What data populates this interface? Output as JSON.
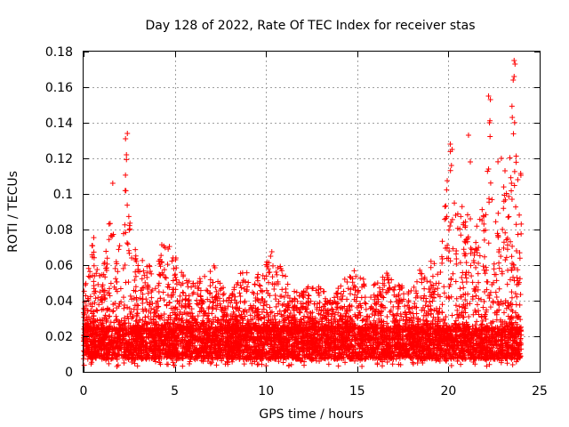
{
  "chart_data": {
    "type": "scatter",
    "title": "Day 128 of 2022, Rate Of TEC Index for receiver stas",
    "xlabel": "GPS time / hours",
    "ylabel": "ROTI / TECUs",
    "xlim": [
      0,
      25
    ],
    "ylim": [
      0,
      0.18
    ],
    "x_ticks": [
      0,
      5,
      10,
      15,
      20,
      25
    ],
    "x_tick_labels": [
      "0",
      "5",
      "10",
      "15",
      "20",
      "25"
    ],
    "y_ticks": [
      0,
      0.02,
      0.04,
      0.06,
      0.08,
      0.1,
      0.12,
      0.14,
      0.16,
      0.18
    ],
    "y_tick_labels": [
      "0",
      "0.02",
      "0.04",
      "0.06",
      "0.08",
      "0.1",
      "0.12",
      "0.14",
      "0.16",
      "0.18"
    ],
    "grid": true,
    "marker": "plus",
    "color": "#ff0000",
    "baseline_band": [
      0.007,
      0.024
    ],
    "envelope": [
      [
        0.0,
        0.045
      ],
      [
        0.3,
        0.06
      ],
      [
        0.5,
        0.083
      ],
      [
        0.8,
        0.055
      ],
      [
        1.0,
        0.06
      ],
      [
        1.3,
        0.075
      ],
      [
        1.6,
        0.106
      ],
      [
        1.9,
        0.07
      ],
      [
        2.2,
        0.095
      ],
      [
        2.4,
        0.133
      ],
      [
        2.6,
        0.09
      ],
      [
        3.0,
        0.065
      ],
      [
        3.5,
        0.062
      ],
      [
        4.0,
        0.06
      ],
      [
        4.4,
        0.076
      ],
      [
        4.8,
        0.072
      ],
      [
        5.2,
        0.06
      ],
      [
        6.0,
        0.05
      ],
      [
        7.2,
        0.06
      ],
      [
        8.0,
        0.042
      ],
      [
        8.6,
        0.06
      ],
      [
        9.3,
        0.052
      ],
      [
        10.0,
        0.062
      ],
      [
        10.3,
        0.076
      ],
      [
        10.8,
        0.06
      ],
      [
        11.5,
        0.045
      ],
      [
        12.5,
        0.05
      ],
      [
        13.5,
        0.045
      ],
      [
        14.2,
        0.05
      ],
      [
        15.0,
        0.065
      ],
      [
        15.6,
        0.045
      ],
      [
        16.6,
        0.06
      ],
      [
        17.2,
        0.05
      ],
      [
        18.0,
        0.047
      ],
      [
        18.7,
        0.065
      ],
      [
        19.5,
        0.06
      ],
      [
        20.1,
        0.128
      ],
      [
        20.5,
        0.09
      ],
      [
        21.0,
        0.098
      ],
      [
        21.5,
        0.085
      ],
      [
        22.0,
        0.1
      ],
      [
        22.3,
        0.155
      ],
      [
        22.7,
        0.12
      ],
      [
        23.0,
        0.108
      ],
      [
        23.3,
        0.11
      ],
      [
        23.6,
        0.175
      ],
      [
        24.0,
        0.108
      ]
    ],
    "peaks": [
      {
        "x": 2.4,
        "y": 0.134
      },
      {
        "x": 2.3,
        "y": 0.131
      },
      {
        "x": 2.35,
        "y": 0.122
      },
      {
        "x": 1.6,
        "y": 0.106
      },
      {
        "x": 20.1,
        "y": 0.128
      },
      {
        "x": 20.2,
        "y": 0.125
      },
      {
        "x": 21.1,
        "y": 0.133
      },
      {
        "x": 21.2,
        "y": 0.118
      },
      {
        "x": 22.2,
        "y": 0.155
      },
      {
        "x": 22.3,
        "y": 0.153
      },
      {
        "x": 22.25,
        "y": 0.14
      },
      {
        "x": 22.2,
        "y": 0.114
      },
      {
        "x": 22.9,
        "y": 0.12
      },
      {
        "x": 23.5,
        "y": 0.143
      },
      {
        "x": 23.6,
        "y": 0.175
      },
      {
        "x": 23.65,
        "y": 0.173
      },
      {
        "x": 23.6,
        "y": 0.166
      },
      {
        "x": 23.55,
        "y": 0.164
      },
      {
        "x": 23.1,
        "y": 0.113
      },
      {
        "x": 23.8,
        "y": 0.108
      }
    ]
  }
}
